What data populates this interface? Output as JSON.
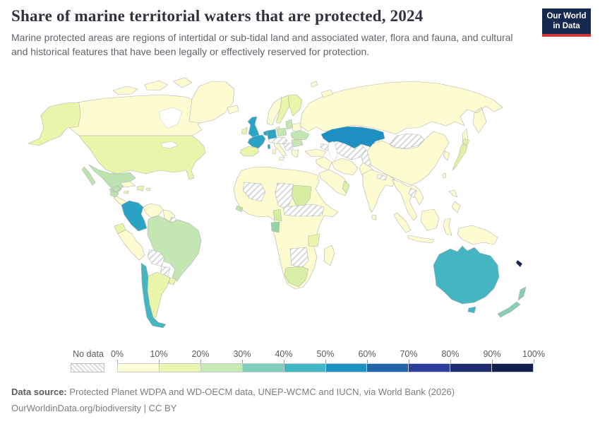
{
  "header": {
    "title": "Share of marine territorial waters that are protected, 2024",
    "subtitle": "Marine protected areas are regions of intertidal or sub-tidal land and associated water, flora and fauna, and cultural and historical features that have been legally or effectively reserved for protection.",
    "logo": {
      "line1": "Our World",
      "line2": "in Data",
      "bg": "#15284e",
      "accent": "#cf3438"
    }
  },
  "legend": {
    "no_data_label": "No data",
    "ticks": [
      "0%",
      "10%",
      "20%",
      "30%",
      "40%",
      "50%",
      "60%",
      "70%",
      "80%",
      "90%",
      "100%"
    ],
    "bins": [
      "#ffffd9",
      "#eaf7b1",
      "#c7e9b4",
      "#7fcdbb",
      "#41b6c4",
      "#1d91c0",
      "#2265ab",
      "#2d3f9c",
      "#202c72",
      "#13204f"
    ]
  },
  "footer": {
    "source_label": "Data source:",
    "source_text": " Protected Planet WDPA and WD-OECM data, UNEP-WCMC and IUCN, via World Bank (2026)",
    "link_line": "OurWorldinData.org/biodiversity | CC BY"
  },
  "map": {
    "sea": "#ffffff",
    "border": "#b3b3b3",
    "hatch_line": "#cfd3d9",
    "regions": {
      "canada": "#fdfbd0",
      "arctic-islands": "#fdfbd0",
      "greenland": "#fdfbd0",
      "iceland": "#fdfbd0",
      "alaska": "#e9f5a9",
      "usa": "#e9f5a9",
      "mexico": "#bce2b0",
      "guatemala": "#bce2b0",
      "central-america": "#fdfbd0",
      "costa-rica-panama": "#bce2b0",
      "cuba": "#fdfbd0",
      "hispaniola": "#e9f5a9",
      "jamaica": "#e9f5a9",
      "puerto-rico": "#e9f5a9",
      "colombia": "#2aa3c5",
      "venezuela": "#fdfbd0",
      "guyanas": "#fdfbd0",
      "french-guiana": "hatch",
      "ecuador": "#e9f5a9",
      "peru": "#fdfbd0",
      "brazil": "#c4e6b2",
      "bolivia": "hatch",
      "paraguay": "hatch",
      "chile": "#46b5c2",
      "argentina": "#e9f5a9",
      "uruguay": "#e9f5a9",
      "uk": "#2aa3c5",
      "ireland": "#e9f5a9",
      "norway": "#fdfbd0",
      "sweden": "#e9f5a9",
      "finland": "#e9f5a9",
      "denmark": "#e9f5a9",
      "germany": "#2aa3c5",
      "benelux": "#2aa3c5",
      "france": "#2aa3c5",
      "spain": "#e9f5a9",
      "italy": "#fdfbd0",
      "central-europe": "hatch",
      "balkans": "hatch",
      "poland": "#c4e6b2",
      "baltics": "#c4e6b2",
      "belarus": "#fdfbd0",
      "ukraine": "#c4e6b2",
      "romania-bulgaria": "#c4e6b2",
      "greece": "#fdfbd0",
      "turkey": "#fdfbd0",
      "caucasus": "hatch",
      "russia": "#fdfbd0",
      "novaya-zemlya": "#fdfbd0",
      "kazakhstan": "#1d8fc1",
      "central-asia": "hatch",
      "afghanistan": "hatch",
      "pakistan": "#fdfbd0",
      "iran": "#fdfbd0",
      "iraq-levant": "#fdfbd0",
      "arabia": "#fdfbd0",
      "oman": "#dff0a8",
      "africa": "#fdfbd0",
      "guinea": "#bce2b0",
      "west-sahara-mali": "hatch",
      "niger-chad": "hatch",
      "central-africa-band": "hatch",
      "sudan": "#d4ed9f",
      "cameroon": "#d4ed9f",
      "gabon": "#93d3a6",
      "tanzania": "#e9f5a9",
      "zambia-zimbabwe": "hatch",
      "south-africa": "#d9eea6",
      "madagascar": "#fdfbd0",
      "india": "#fdfbd0",
      "nepal": "hatch",
      "sri-lanka": "#fdfbd0",
      "china": "#fdfbd0",
      "mongolia": "hatch",
      "korea": "#fdfbd0",
      "japan": "#e2f2a4",
      "taiwan": "#fdfbd0",
      "se-asia": "#fdfbd0",
      "laos": "hatch",
      "indonesia": "#fdfbd0",
      "philippines": "#fdfbd0",
      "new-guinea": "#fdfbd0",
      "australia": "#46b5c2",
      "new-zealand": "#86ceb4",
      "new-caledonia": "#16204d"
    }
  }
}
